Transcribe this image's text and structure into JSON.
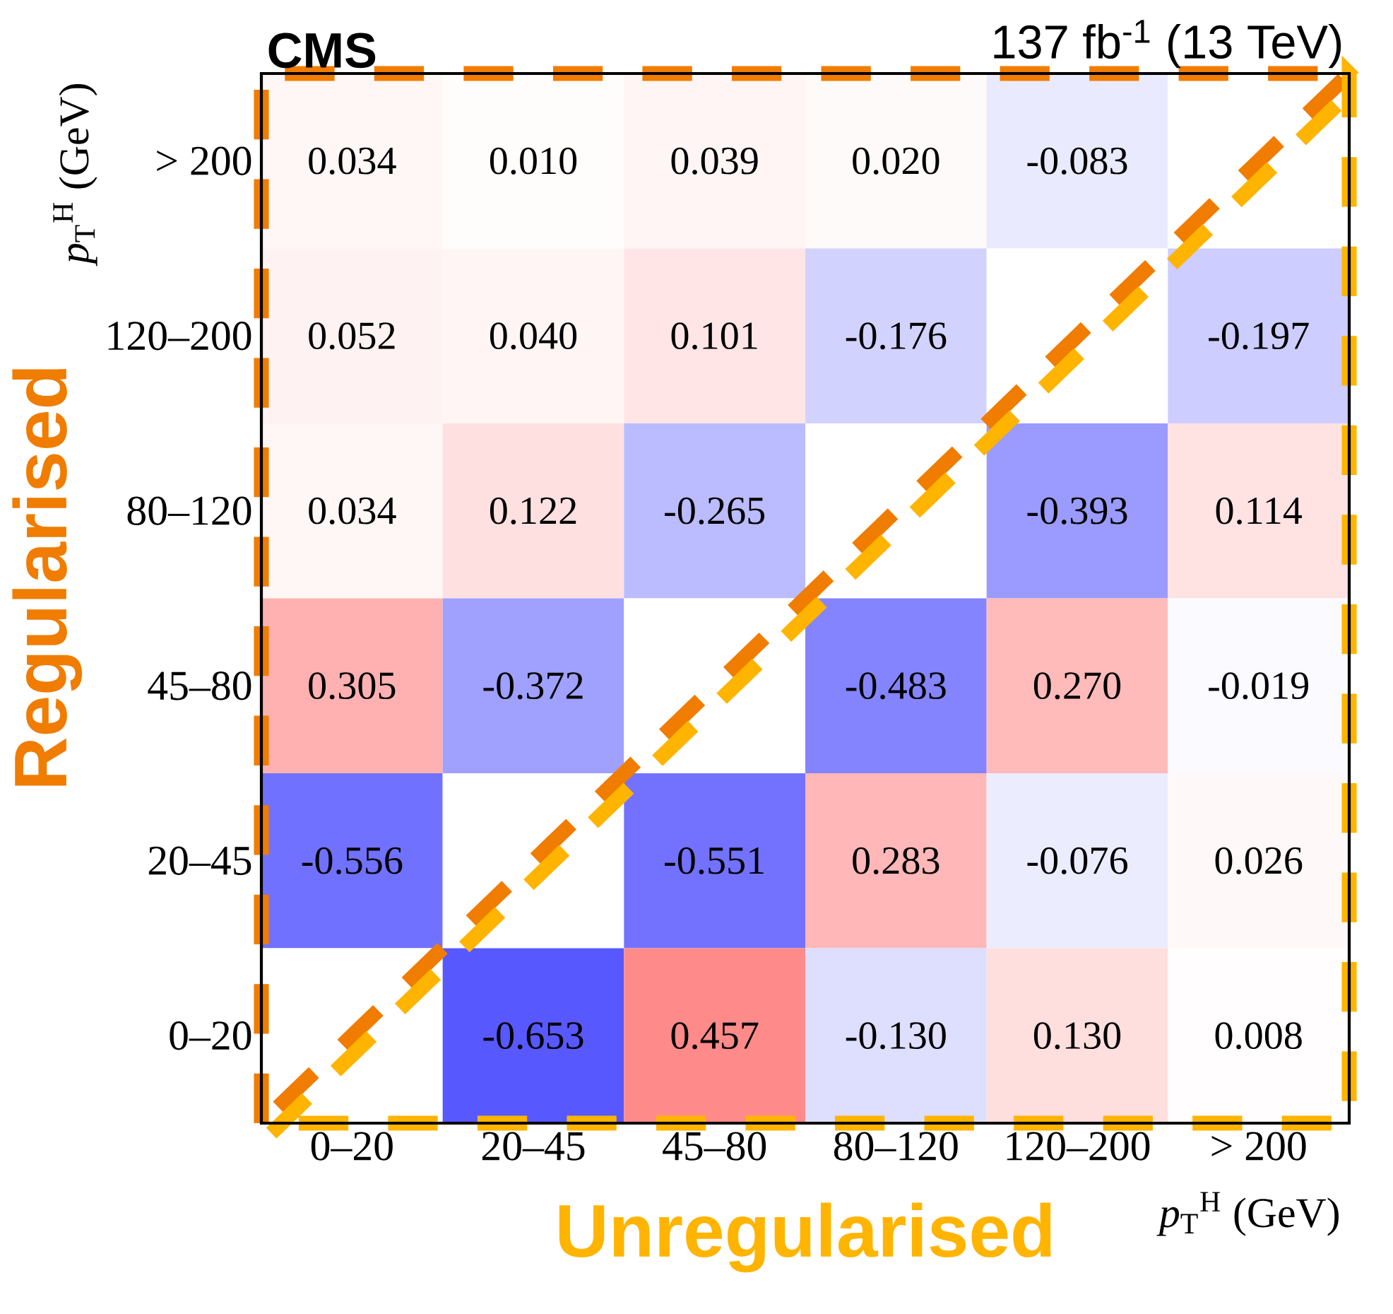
{
  "chart_data": {
    "type": "heatmap",
    "title": "CMS",
    "subtitle": "137 fb$^{-1}$ (13 TeV)",
    "xlabel": "*p*$_{T}$$^{H}$ (GeV)",
    "ylabel": "*p*$_{T}$$^{H}$ (GeV)",
    "categories": [
      "0–20",
      "20–45",
      "45–80",
      "80–120",
      "120–200",
      "> 200"
    ],
    "y_categories": [
      "> 200",
      "120–200",
      "80–120",
      "45–80",
      "20–45",
      "0–20"
    ],
    "cells": [
      [
        0.034,
        0.01,
        0.039,
        0.02,
        -0.083,
        null
      ],
      [
        0.052,
        0.04,
        0.101,
        -0.176,
        null,
        -0.197
      ],
      [
        0.034,
        0.122,
        -0.265,
        null,
        -0.393,
        0.114
      ],
      [
        0.305,
        -0.372,
        null,
        -0.483,
        0.27,
        -0.019
      ],
      [
        -0.556,
        null,
        -0.551,
        0.283,
        -0.076,
        0.026
      ],
      [
        null,
        -0.653,
        0.457,
        -0.13,
        0.13,
        0.008
      ]
    ],
    "cell_labels": [
      [
        "0.034",
        "0.010",
        "0.039",
        "0.020",
        "-0.083",
        null
      ],
      [
        "0.052",
        "0.040",
        "0.101",
        "-0.176",
        null,
        "-0.197"
      ],
      [
        "0.034",
        "0.122",
        "-0.265",
        null,
        "-0.393",
        "0.114"
      ],
      [
        "0.305",
        "-0.372",
        null,
        "-0.483",
        "0.270",
        "-0.019"
      ],
      [
        "-0.556",
        null,
        "-0.551",
        "0.283",
        "-0.076",
        "0.026"
      ],
      [
        null,
        "-0.653",
        "0.457",
        "-0.130",
        "0.130",
        "0.008"
      ]
    ],
    "annotations": [
      "Regularised",
      "Unregularised"
    ]
  }
}
